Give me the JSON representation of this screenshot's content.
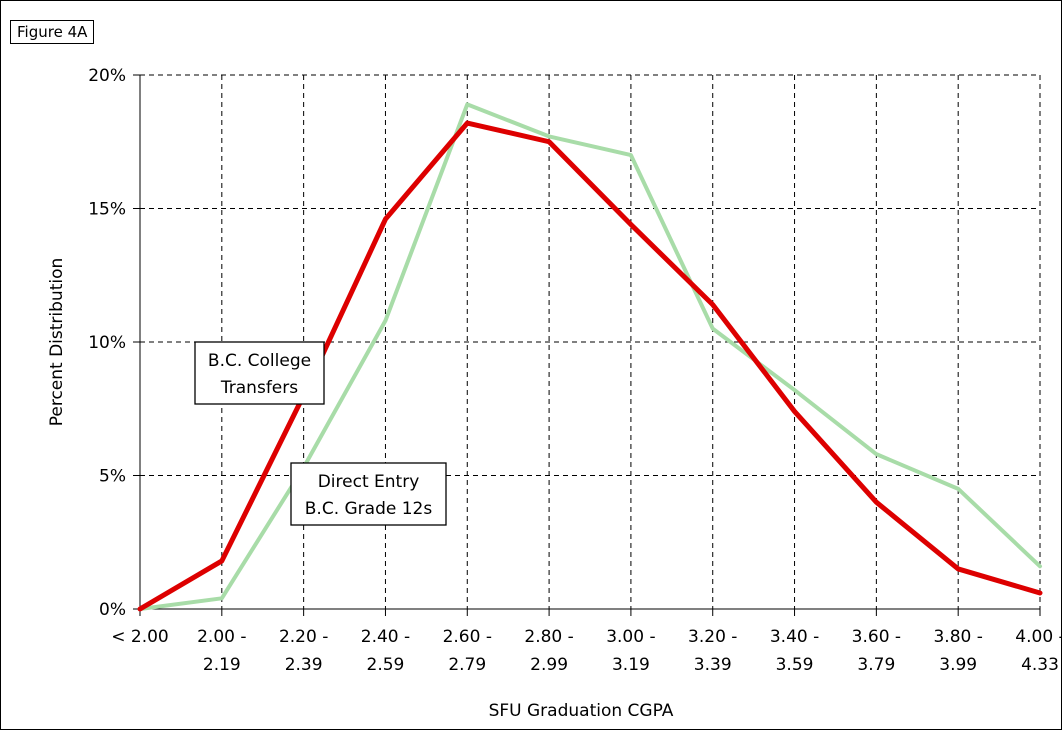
{
  "figure_label": "Figure 4A",
  "colors": {
    "transfers": "#dd0000",
    "direct_entry": "#a8dca8",
    "grid": "#000000"
  },
  "chart_data": {
    "type": "line",
    "xlabel": "SFU Graduation CGPA",
    "ylabel": "Percent Distribution",
    "ylim": [
      0,
      20
    ],
    "y_ticks": [
      0,
      5,
      10,
      15,
      20
    ],
    "y_tick_labels": [
      "0%",
      "5%",
      "10%",
      "15%",
      "20%"
    ],
    "grid": true,
    "categories": [
      [
        "< 2.00",
        ""
      ],
      [
        "2.00 -",
        "2.19"
      ],
      [
        "2.20 -",
        "2.39"
      ],
      [
        "2.40 -",
        "2.59"
      ],
      [
        "2.60 -",
        "2.79"
      ],
      [
        "2.80 -",
        "2.99"
      ],
      [
        "3.00 -",
        "3.19"
      ],
      [
        "3.20 -",
        "3.39"
      ],
      [
        "3.40 -",
        "3.59"
      ],
      [
        "3.60 -",
        "3.79"
      ],
      [
        "3.80 -",
        "3.99"
      ],
      [
        "4.00 -",
        "4.33"
      ]
    ],
    "series": [
      {
        "key": "transfers",
        "label_lines": [
          "B.C. College",
          "Transfers"
        ],
        "values": [
          0,
          1.8,
          8.0,
          14.6,
          18.2,
          17.5,
          14.4,
          11.4,
          7.4,
          4.0,
          1.5,
          0.6
        ]
      },
      {
        "key": "direct_entry",
        "label_lines": [
          "Direct Entry",
          "B.C. Grade 12s"
        ],
        "values": [
          0,
          0.4,
          5.3,
          10.8,
          18.9,
          17.7,
          17.0,
          10.5,
          8.2,
          5.8,
          4.5,
          1.6
        ]
      }
    ]
  }
}
